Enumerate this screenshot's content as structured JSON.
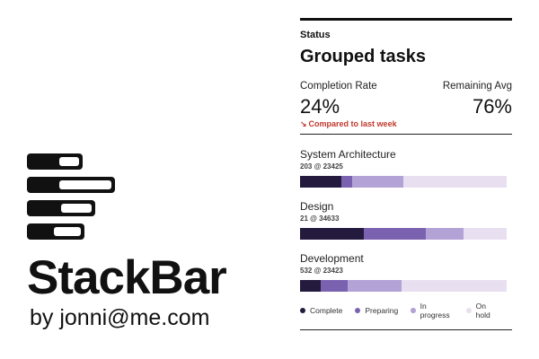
{
  "app": {
    "name": "StackBar",
    "byline": "by jonni@me.com"
  },
  "card": {
    "eyebrow": "Status",
    "title": "Grouped tasks",
    "stats": {
      "left": {
        "label": "Completion Rate",
        "value": "24%"
      },
      "right": {
        "label": "Remaining Avg",
        "value": "76%"
      }
    },
    "delta": {
      "icon": "trend-down-arrow-icon",
      "text": "Compared to last week",
      "color": "#c0392b"
    },
    "legend": [
      {
        "label": "Complete",
        "color": "#241a3d"
      },
      {
        "label": "Preparing",
        "color": "#7b62b0"
      },
      {
        "label": "In progress",
        "color": "#b3a2d6"
      },
      {
        "label": "On hold",
        "color": "#e8e0f0"
      }
    ],
    "groups": [
      {
        "name": "System Architecture",
        "meta": "203 @ 23425",
        "segments": [
          {
            "status": "Complete",
            "share": 0.2
          },
          {
            "status": "Preparing",
            "share": 0.05
          },
          {
            "status": "In progress",
            "share": 0.25
          },
          {
            "status": "On hold",
            "share": 0.5
          }
        ]
      },
      {
        "name": "Design",
        "meta": "21 @ 34633",
        "segments": [
          {
            "status": "Complete",
            "share": 0.31
          },
          {
            "status": "Preparing",
            "share": 0.3
          },
          {
            "status": "In progress",
            "share": 0.18
          },
          {
            "status": "On hold",
            "share": 0.21
          }
        ]
      },
      {
        "name": "Development",
        "meta": "532 @ 23423",
        "segments": [
          {
            "status": "Complete",
            "share": 0.1
          },
          {
            "status": "Preparing",
            "share": 0.13
          },
          {
            "status": "In progress",
            "share": 0.26
          },
          {
            "status": "On hold",
            "share": 0.51
          }
        ]
      }
    ]
  }
}
